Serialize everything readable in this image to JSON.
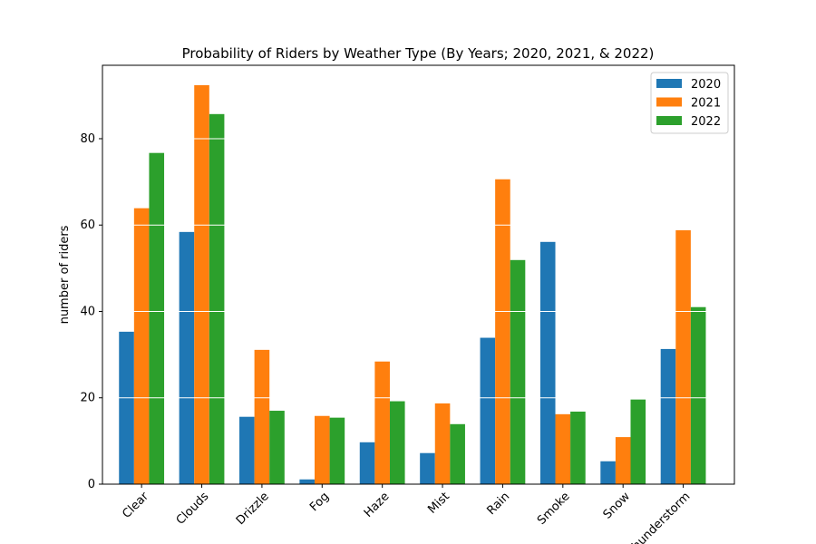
{
  "chart_data": {
    "type": "bar",
    "title": "Probability of Riders by Weather Type (By Years; 2020, 2021, & 2022)",
    "xlabel": "",
    "ylabel": "number of riders",
    "categories": [
      "Clear",
      "Clouds",
      "Drizzle",
      "Fog",
      "Haze",
      "Mist",
      "Rain",
      "Smoke",
      "Snow",
      "Thunderstorm"
    ],
    "series": [
      {
        "name": "2020",
        "color": "#1f77b4",
        "values": [
          35.3,
          58.4,
          15.6,
          1.1,
          9.7,
          7.2,
          33.9,
          56.1,
          5.3,
          31.3
        ]
      },
      {
        "name": "2021",
        "color": "#ff7f0e",
        "values": [
          63.9,
          92.4,
          31.1,
          15.8,
          28.4,
          18.7,
          70.6,
          16.2,
          10.9,
          58.8
        ]
      },
      {
        "name": "2022",
        "color": "#2ca02c",
        "values": [
          76.7,
          85.7,
          17.0,
          15.4,
          19.2,
          13.9,
          51.9,
          16.8,
          19.6,
          41.0
        ]
      }
    ],
    "ylim": [
      0,
      97
    ],
    "yticks": [
      0,
      20,
      40,
      60,
      80
    ],
    "grid": "horizontal white lines over bars",
    "legend_position": "top-right"
  }
}
